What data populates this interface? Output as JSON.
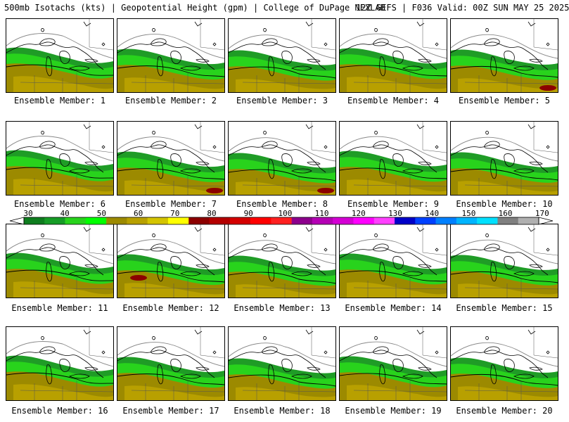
{
  "header": {
    "left": "500mb Isotachs (kts) | Geopotential Height (gpm) | College of DuPage NEXLAB",
    "right": "12Z GEFS | F036 Valid: 00Z SUN MAY 25 2025"
  },
  "panels": [
    {
      "label": "Ensemble Member: 1"
    },
    {
      "label": "Ensemble Member: 2"
    },
    {
      "label": "Ensemble Member: 3"
    },
    {
      "label": "Ensemble Member: 4"
    },
    {
      "label": "Ensemble Member: 5"
    },
    {
      "label": "Ensemble Member: 6"
    },
    {
      "label": "Ensemble Member: 7"
    },
    {
      "label": "Ensemble Member: 8"
    },
    {
      "label": "Ensemble Member: 9"
    },
    {
      "label": "Ensemble Member: 10"
    },
    {
      "label": "Ensemble Member: 11"
    },
    {
      "label": "Ensemble Member: 12"
    },
    {
      "label": "Ensemble Member: 13"
    },
    {
      "label": "Ensemble Member: 14"
    },
    {
      "label": "Ensemble Member: 15"
    },
    {
      "label": "Ensemble Member: 16"
    },
    {
      "label": "Ensemble Member: 17"
    },
    {
      "label": "Ensemble Member: 18"
    },
    {
      "label": "Ensemble Member: 19"
    },
    {
      "label": "Ensemble Member: 20"
    }
  ],
  "colorbar": {
    "labels": [
      "30",
      "40",
      "50",
      "60",
      "70",
      "80",
      "90",
      "100",
      "110",
      "120",
      "130",
      "140",
      "150",
      "160",
      "170"
    ],
    "colors": [
      "#0e7d1e",
      "#169c26",
      "#28d31c",
      "#00ff00",
      "#9c8a00",
      "#b8a000",
      "#d4c400",
      "#ffff00",
      "#8c0000",
      "#b40000",
      "#d40000",
      "#ff0000",
      "#ff2020",
      "#8c008c",
      "#b400b4",
      "#d400d4",
      "#ff00ff",
      "#ff40ff",
      "#0000c8",
      "#0040ff",
      "#0080ff",
      "#00b4ff",
      "#00e0ff",
      "#808080",
      "#b0b0b0"
    ],
    "colors_per_label": 5
  }
}
